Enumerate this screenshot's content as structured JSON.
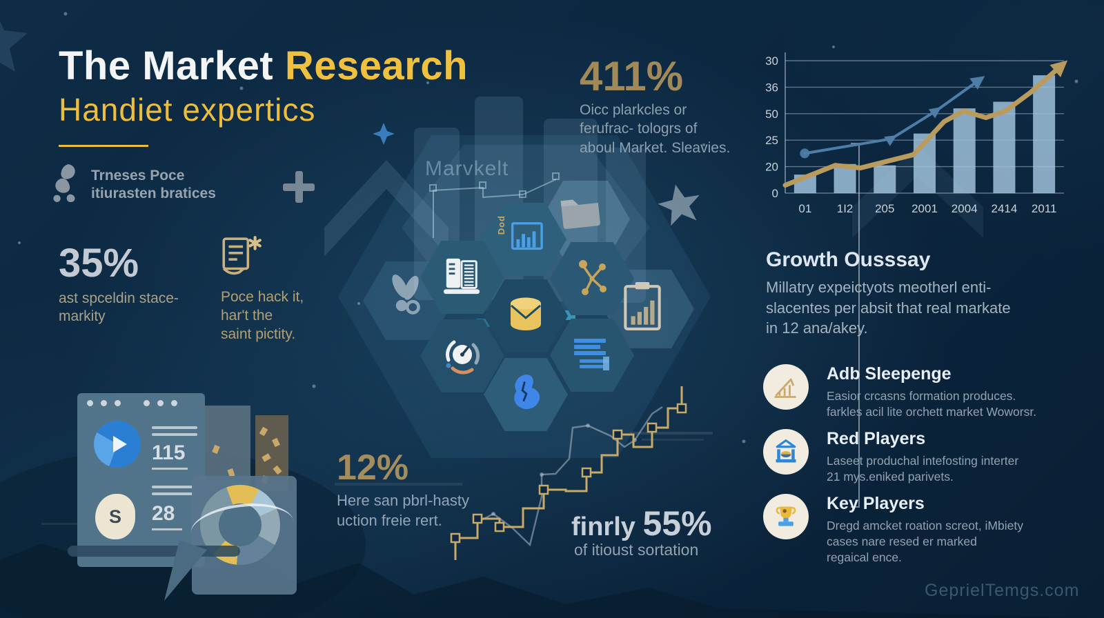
{
  "header": {
    "title_white": "The Market",
    "title_yellow": "Research",
    "subtitle": "Handiet expertics"
  },
  "brand": {
    "line1": "Trneses Poce",
    "line2": "itiurasten bratices"
  },
  "stats": {
    "stat_35": {
      "value": "35%",
      "caption": "ast spceldin stace-\nmarkity"
    },
    "note": {
      "text": "Poce hack it,\nhar't the\nsaint pictity."
    },
    "stat_411": {
      "value": "411%",
      "caption": "Oicc plarkcles or\nferufrac- tologrs of\naboul Market. Sleavies."
    },
    "stat_12": {
      "value": "12%",
      "caption": "Here san pbrl-hasty\nuction freie rert."
    },
    "stat_55": {
      "label": "finrly ",
      "value": "55%",
      "caption": "of itioust sortation"
    }
  },
  "growth": {
    "heading": "Growth Ousssay",
    "body": "Millatry expeictyots  meotherl enti-\nslacentes per absit that real markate\nin 12 ana/akey."
  },
  "players": [
    {
      "icon": "growth-bars-icon",
      "title": "Adb Sleepenge",
      "body": "Easior crcasns formation produces.\nfarkles acil lite orchett market Woworsr."
    },
    {
      "icon": "building-icon",
      "title": "Red Players",
      "body": "Laseet produchal intefosting interter\n21 mys.eniked parivets."
    },
    {
      "icon": "trophy-icon",
      "title": "Key Players",
      "body": "Dregd amcket roation screot, iMbiety\ncases nare resed er marked\nregaical ence."
    }
  ],
  "hexgrid": {
    "watermark_label": "Marvkelt",
    "doc_label": "Dod",
    "icons": [
      "server-icon",
      "chart-doc-icon",
      "network-icon",
      "database-icon",
      "gauge-icon",
      "doc-lines-icon",
      "hand-icon",
      "folder-icon",
      "clipboard-icon",
      "scissors-icon"
    ]
  },
  "dashboard": {
    "metric1": "115",
    "metric2": "28",
    "currency_symbol": "S"
  },
  "chart_data": {
    "type": "combo-bar-line",
    "title": "",
    "categories": [
      "01",
      "1I2",
      "205",
      "2001",
      "2004",
      "2414",
      "2011"
    ],
    "y_ticks_bottom_to_top": [
      "0",
      "20",
      "25",
      "50",
      "36",
      "30"
    ],
    "grid": true,
    "legend": "none",
    "value_scale": "percent of plotted axis height",
    "series": [
      {
        "name": "volume-bars",
        "type": "bar",
        "color": "rgba(164,198,223,0.82)",
        "values_pct": [
          14,
          22,
          21,
          45,
          64,
          69,
          89
        ]
      },
      {
        "name": "gold-trend-line",
        "type": "line",
        "color": "#b99b5e",
        "width": 7,
        "arrow_end": true,
        "marker_id": "arrow-gold",
        "points_pct": [
          [
            0,
            6
          ],
          [
            0.18,
            21
          ],
          [
            0.27,
            19
          ],
          [
            0.46,
            29
          ],
          [
            0.57,
            54
          ],
          [
            0.64,
            62
          ],
          [
            0.72,
            57
          ],
          [
            0.79,
            62
          ],
          [
            0.88,
            76
          ],
          [
            0.995,
            97
          ]
        ]
      },
      {
        "name": "blue-trend-line",
        "type": "line",
        "color": "#4e7ea8",
        "width": 4,
        "arrow_end": true,
        "marker_id": "arrow-blue",
        "markers": "triangle",
        "start_dot": true,
        "points_pct": [
          [
            0.07,
            30
          ],
          [
            0.38,
            41
          ],
          [
            0.54,
            62
          ],
          [
            0.7,
            86
          ]
        ]
      }
    ]
  },
  "palette": {
    "background": "#0c2740",
    "accent_yellow": "#f0c13e",
    "stat_gold": "#a18a58",
    "stat_silver": "#c3cad3",
    "body_gray": "#92a2b1",
    "bar_blue": "#a4c6df",
    "line_gold": "#b99b5e",
    "line_blue": "#4e7ea8",
    "icon_cream": "#f1ecdf",
    "icon_blue": "#3f86e8"
  },
  "footer": {
    "watermark": "GeprielTemgs.com"
  }
}
